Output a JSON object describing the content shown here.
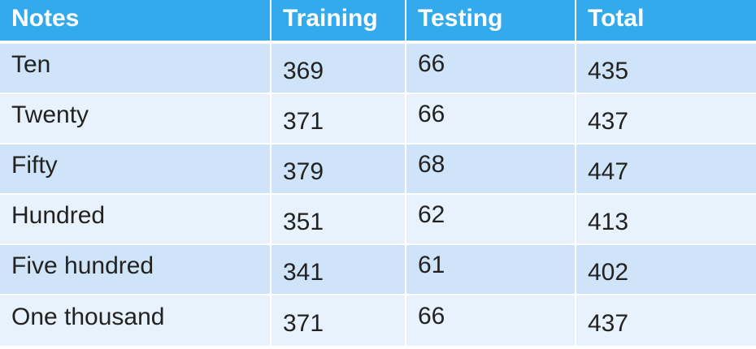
{
  "table": {
    "headers": [
      "Notes",
      "Training",
      "Testing",
      "Total"
    ],
    "rows": [
      [
        "Ten",
        "369",
        "66",
        "435"
      ],
      [
        "Twenty",
        "371",
        "66",
        "437"
      ],
      [
        "Fifty",
        "379",
        "68",
        "447"
      ],
      [
        "Hundred",
        "351",
        "62",
        "413"
      ],
      [
        "Five hundred",
        "341",
        "61",
        "402"
      ],
      [
        "One thousand",
        "371",
        "66",
        "437"
      ]
    ]
  },
  "colors": {
    "header_bg": "#32aaeb",
    "row_dark": "#cfe4f8",
    "row_light": "#e8f2fc"
  }
}
